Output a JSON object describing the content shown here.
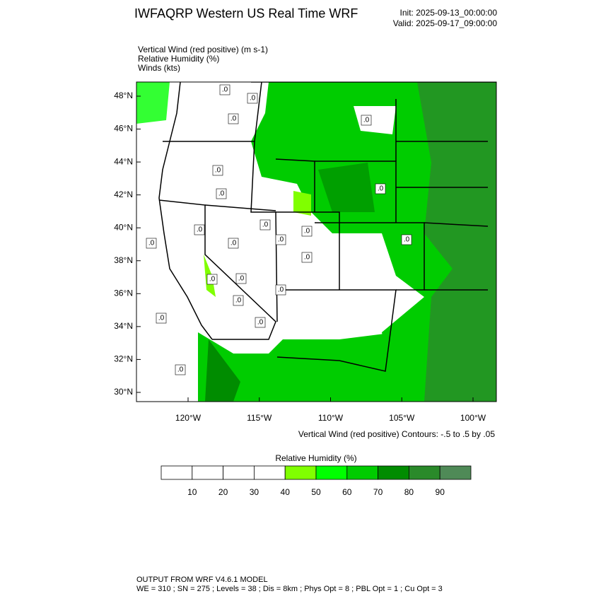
{
  "header": {
    "title": "IWFAQRP Western US Real Time WRF",
    "init": "Init: 2025-09-13_00:00:00",
    "valid": "Valid: 2025-09-17_09:00:00"
  },
  "fields": [
    "Vertical Wind (red positive)   (m s-1)",
    "Relative Humidity   (%)",
    "Winds   (kts)"
  ],
  "map": {
    "lat_labels": [
      "48°N",
      "46°N",
      "44°N",
      "42°N",
      "40°N",
      "38°N",
      "36°N",
      "34°N",
      "32°N",
      "30°N"
    ],
    "lon_labels": [
      "120°W",
      "115°W",
      "110°W",
      "105°W",
      "100°W"
    ],
    "contour_note": "Vertical Wind (red positive) Contours: -.5 to .5 by .05",
    "contour_labels": [
      ".0",
      ".0",
      ".0",
      ".0",
      ".0",
      ".0",
      ".0",
      ".0",
      ".0",
      ".0",
      ".0",
      ".0",
      ".0",
      ".0",
      ".0",
      ".0",
      ".0",
      ".0",
      ".0",
      ".0",
      ".0",
      ".0"
    ]
  },
  "colorbar": {
    "title": "Relative Humidity  (%)",
    "ticks": [
      10,
      20,
      30,
      40,
      50,
      60,
      70,
      80,
      90
    ],
    "colors": [
      "#ffffff",
      "#ffffff",
      "#ffffff",
      "#ffffff",
      "#80ff00",
      "#00ff00",
      "#00cc00",
      "#008c00",
      "#2a8a2a",
      "#4f8a57"
    ]
  },
  "footer": {
    "model": "OUTPUT FROM WRF V4.6.1 MODEL",
    "settings": "WE = 310 ; SN = 275 ; Levels = 38 ; Dis = 8km ; Phys Opt = 8 ; PBL Opt = 1 ; Cu Opt = 3"
  }
}
